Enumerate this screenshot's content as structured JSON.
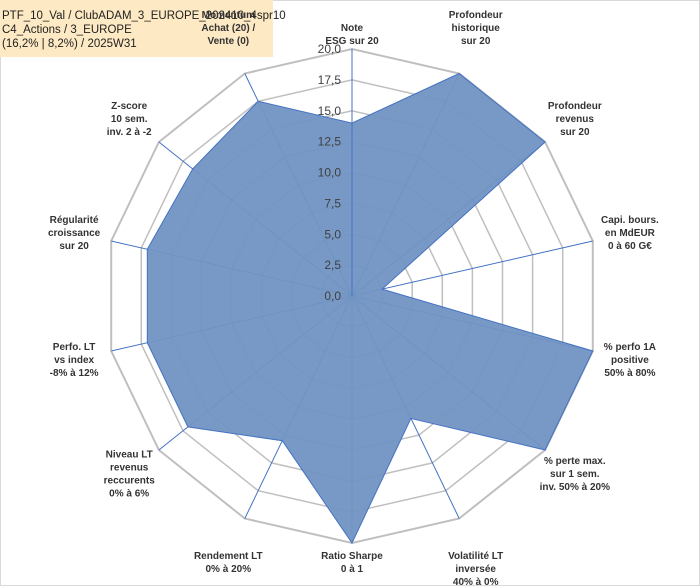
{
  "header": {
    "line1": "PTF_10_Val / ClubADAM_3_EUROPE_202410_4spr10",
    "line2": "C4_Actions / 3_EUROPE",
    "line3": "(16,2% | 8,2%) / 2025W31"
  },
  "colors": {
    "fill": "#7194c2",
    "stroke": "#4472c4",
    "grid": "#bfbfbf",
    "title_bg": "#fde9c3"
  },
  "chart_data": {
    "type": "radar",
    "range": [
      0,
      20
    ],
    "tick_values": [
      0,
      2.5,
      5,
      7.5,
      10,
      12.5,
      15,
      17.5,
      20
    ],
    "tick_labels": [
      "0,0",
      "2,5",
      "5,0",
      "7,5",
      "10,0",
      "12,5",
      "15,0",
      "17,5",
      "20,0"
    ],
    "axes": [
      {
        "label": [
          "Note",
          "ESG sur 20"
        ],
        "value": 14.0
      },
      {
        "label": [
          "Profondeur",
          "historique",
          "sur 20"
        ],
        "value": 20.0
      },
      {
        "label": [
          "Profondeur",
          "revenus",
          "sur 20"
        ],
        "value": 20.0
      },
      {
        "label": [
          "Capi. bours.",
          "en MdEUR",
          "0 à 60 G€"
        ],
        "value": 2.5
      },
      {
        "label": [
          "% perfo 1A",
          "positive",
          "50% à 80%"
        ],
        "value": 20.0
      },
      {
        "label": [
          "% perte max.",
          "sur 1 sem.",
          "inv. 50% à 20%"
        ],
        "value": 20.0
      },
      {
        "label": [
          "Volatilité LT",
          "inversée",
          "40% à 0%"
        ],
        "value": 11.0
      },
      {
        "label": [
          "Ratio Sharpe",
          "0 à 1"
        ],
        "value": 20.0
      },
      {
        "label": [
          "Rendement LT",
          "0% à 20%"
        ],
        "value": 13.0
      },
      {
        "label": [
          "Niveau LT",
          "revenus",
          "reccurents",
          "0% à 6%"
        ],
        "value": 17.0
      },
      {
        "label": [
          "Perfo. LT",
          "vs index",
          "-8% à 12%"
        ],
        "value": 17.0
      },
      {
        "label": [
          "Régularité",
          "croissance",
          "sur 20"
        ],
        "value": 17.0
      },
      {
        "label": [
          "Z-score",
          "10 sem.",
          "inv. 2 à -2"
        ],
        "value": 16.5
      },
      {
        "label": [
          "Momentum",
          "Achat (20) /",
          "Vente (0)"
        ],
        "value": 17.5
      }
    ]
  }
}
